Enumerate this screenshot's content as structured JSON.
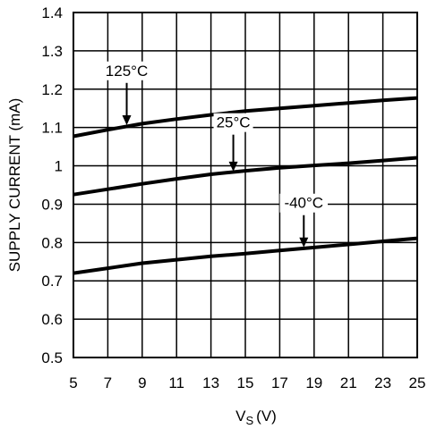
{
  "chart_data": {
    "type": "line",
    "title": "",
    "xlabel_main": "V",
    "xlabel_sub": "S",
    "xlabel_unit": "(V)",
    "ylabel": "SUPPLY CURRENT (mA)",
    "xlim": [
      5,
      25
    ],
    "ylim": [
      0.5,
      1.4
    ],
    "x_ticks": [
      5,
      7,
      9,
      11,
      13,
      15,
      17,
      19,
      21,
      23,
      25
    ],
    "x_tick_labels": [
      "5",
      "7",
      "9",
      "11",
      "13",
      "15",
      "17",
      "19",
      "21",
      "23",
      "25"
    ],
    "y_ticks": [
      0.5,
      0.6,
      0.7,
      0.8,
      0.9,
      1.0,
      1.1,
      1.2,
      1.3,
      1.4
    ],
    "y_tick_labels": [
      "0.5",
      "0.6",
      "0.7",
      "0.8",
      "0.9",
      "1",
      "1.1",
      "1.2",
      "1.3",
      "1.4"
    ],
    "grid": true,
    "series": [
      {
        "name": "125°C",
        "x": [
          5,
          7,
          9,
          11,
          13,
          15,
          17,
          19,
          21,
          23,
          25
        ],
        "y": [
          1.077,
          1.094,
          1.11,
          1.122,
          1.133,
          1.143,
          1.15,
          1.157,
          1.164,
          1.171,
          1.177
        ]
      },
      {
        "name": "25°C",
        "x": [
          5,
          7,
          9,
          11,
          13,
          15,
          17,
          19,
          21,
          23,
          25
        ],
        "y": [
          0.925,
          0.939,
          0.953,
          0.966,
          0.978,
          0.987,
          0.995,
          1.001,
          1.007,
          1.014,
          1.021
        ]
      },
      {
        "name": "-40°C",
        "x": [
          5,
          7,
          9,
          11,
          13,
          15,
          17,
          19,
          21,
          23,
          25
        ],
        "y": [
          0.72,
          0.733,
          0.746,
          0.755,
          0.764,
          0.771,
          0.779,
          0.787,
          0.795,
          0.803,
          0.811
        ]
      }
    ],
    "annotations": [
      {
        "text": "125°C",
        "text_x": 8.1,
        "text_y": 1.235,
        "arrow_to_x": 8.1,
        "arrow_to_y": 1.104
      },
      {
        "text": "25°C",
        "text_x": 14.3,
        "text_y": 1.1,
        "arrow_to_x": 14.3,
        "arrow_to_y": 0.983
      },
      {
        "text": "-40°C",
        "text_x": 18.4,
        "text_y": 0.89,
        "arrow_to_x": 18.4,
        "arrow_to_y": 0.785
      }
    ]
  }
}
